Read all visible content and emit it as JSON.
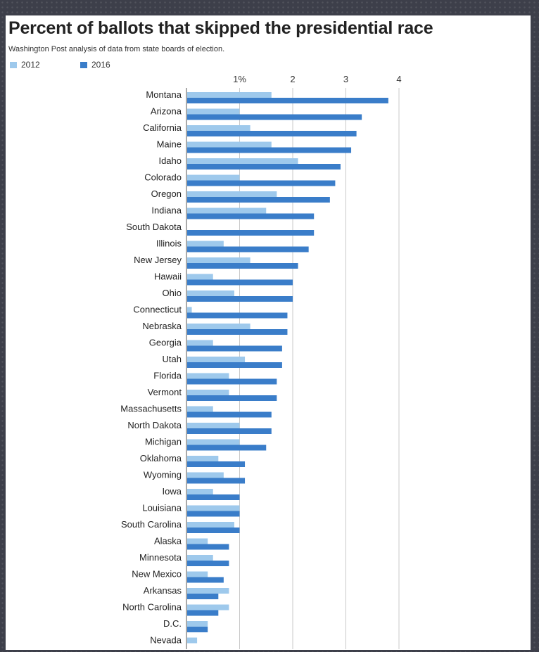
{
  "chart_data": {
    "type": "bar",
    "orientation": "horizontal",
    "title": "Percent of ballots that skipped the presidential race",
    "subtitle": "Washington Post analysis of data from state boards of election.",
    "xlabel": "",
    "ylabel": "",
    "xlim": [
      0,
      4
    ],
    "tick_values": [
      1,
      2,
      3,
      4
    ],
    "tick_labels": [
      "1%",
      "2",
      "3",
      "4"
    ],
    "grid": true,
    "legend_position": "top-left",
    "categories": [
      "Montana",
      "Arizona",
      "California",
      "Maine",
      "Idaho",
      "Colorado",
      "Oregon",
      "Indiana",
      "South Dakota",
      "Illinois",
      "New Jersey",
      "Hawaii",
      "Ohio",
      "Connecticut",
      "Nebraska",
      "Georgia",
      "Utah",
      "Florida",
      "Vermont",
      "Massachusetts",
      "North Dakota",
      "Michigan",
      "Oklahoma",
      "Wyoming",
      "Iowa",
      "Louisiana",
      "South Carolina",
      "Alaska",
      "Minnesota",
      "New Mexico",
      "Arkansas",
      "North Carolina",
      "D.C.",
      "Nevada"
    ],
    "series": [
      {
        "name": "2012",
        "color": "#9ec9ec",
        "values": [
          1.6,
          1.0,
          1.2,
          1.6,
          2.1,
          1.0,
          1.7,
          1.5,
          0.0,
          0.7,
          1.2,
          0.5,
          0.9,
          0.1,
          1.2,
          0.5,
          1.1,
          0.8,
          0.8,
          0.5,
          1.0,
          1.0,
          0.6,
          0.7,
          0.5,
          1.0,
          0.9,
          0.4,
          0.5,
          0.4,
          0.8,
          0.8,
          0.4,
          0.2
        ]
      },
      {
        "name": "2016",
        "color": "#3a7dc9",
        "values": [
          3.8,
          3.3,
          3.2,
          3.1,
          2.9,
          2.8,
          2.7,
          2.4,
          2.4,
          2.3,
          2.1,
          2.0,
          2.0,
          1.9,
          1.9,
          1.8,
          1.8,
          1.7,
          1.7,
          1.6,
          1.6,
          1.5,
          1.1,
          1.1,
          1.0,
          1.0,
          1.0,
          0.8,
          0.8,
          0.7,
          0.6,
          0.6,
          0.4,
          0.0
        ]
      }
    ]
  }
}
